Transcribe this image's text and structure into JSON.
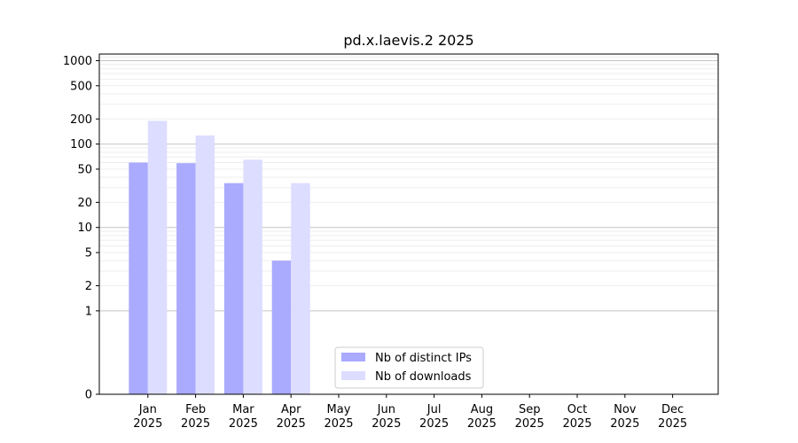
{
  "chart_data": {
    "type": "bar",
    "title": "pd.x.laevis.2 2025",
    "xlabel": "",
    "ylabel": "",
    "y_scale": "symlog",
    "ylim": [
      0,
      1200
    ],
    "yticks": [
      0,
      1,
      2,
      5,
      10,
      20,
      50,
      100,
      200,
      500,
      1000
    ],
    "grid": "horizontal",
    "legend_position": "bottom-center",
    "categories": [
      {
        "month": "Jan",
        "year": "2025"
      },
      {
        "month": "Feb",
        "year": "2025"
      },
      {
        "month": "Mar",
        "year": "2025"
      },
      {
        "month": "Apr",
        "year": "2025"
      },
      {
        "month": "May",
        "year": "2025"
      },
      {
        "month": "Jun",
        "year": "2025"
      },
      {
        "month": "Jul",
        "year": "2025"
      },
      {
        "month": "Aug",
        "year": "2025"
      },
      {
        "month": "Sep",
        "year": "2025"
      },
      {
        "month": "Oct",
        "year": "2025"
      },
      {
        "month": "Nov",
        "year": "2025"
      },
      {
        "month": "Dec",
        "year": "2025"
      }
    ],
    "series": [
      {
        "name": "Nb of distinct IPs",
        "color": "#aaaaff",
        "values": [
          60,
          59,
          34,
          4,
          0,
          0,
          0,
          0,
          0,
          0,
          0,
          0
        ]
      },
      {
        "name": "Nb of downloads",
        "color": "#ddddff",
        "values": [
          190,
          127,
          65,
          34,
          0,
          0,
          0,
          0,
          0,
          0,
          0,
          0
        ]
      }
    ]
  }
}
